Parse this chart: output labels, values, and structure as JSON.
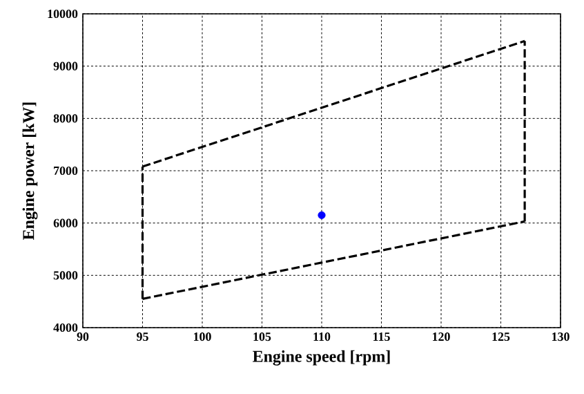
{
  "chart_data": {
    "type": "line",
    "xlabel": "Engine speed [rpm]",
    "ylabel": "Engine power [kW]",
    "xlim": [
      90,
      130
    ],
    "xticks": [
      90,
      95,
      100,
      105,
      110,
      115,
      120,
      125,
      130
    ],
    "ylim": [
      4000,
      10000
    ],
    "yticks": [
      4000,
      5000,
      6000,
      7000,
      8000,
      9000,
      10000
    ],
    "grid": true,
    "series": [
      {
        "color": "#000000",
        "line_style": "dashed",
        "marker": "none",
        "x": [
          95,
          127
        ],
        "values": [
          4550,
          6030
        ]
      },
      {
        "color": "#000000",
        "line_style": "dashed",
        "marker": "none",
        "x": [
          127,
          127
        ],
        "values": [
          6030,
          9480
        ]
      },
      {
        "color": "#000000",
        "line_style": "dashed",
        "marker": "none",
        "x": [
          95,
          127
        ],
        "values": [
          7080,
          9480
        ]
      },
      {
        "color": "#000000",
        "line_style": "dashed",
        "marker": "none",
        "x": [
          95,
          95
        ],
        "values": [
          4550,
          7080
        ]
      },
      {
        "type": "scatter",
        "color": "#0000ff",
        "marker": "circle",
        "x": [
          110
        ],
        "values": [
          6150
        ]
      }
    ]
  }
}
